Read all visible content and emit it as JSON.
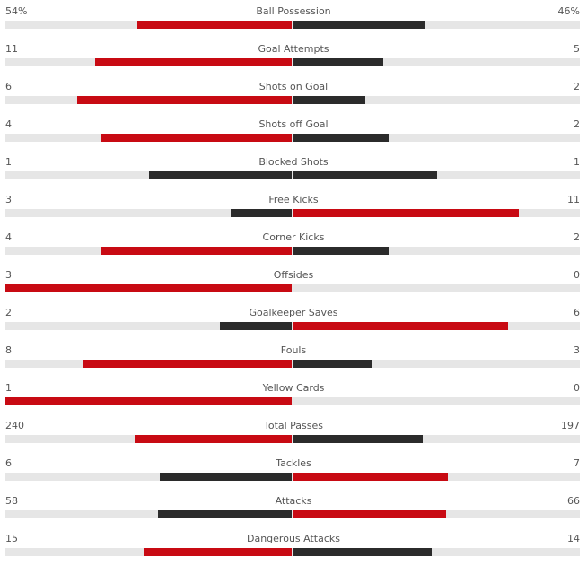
{
  "colors": {
    "highlight": "#c80a13",
    "normal": "#2b2b2b",
    "track": "#e6e6e6"
  },
  "stats": [
    {
      "name": "Ball Possession",
      "home": "54%",
      "away": "46%",
      "home_value": 54,
      "away_value": 46
    },
    {
      "name": "Goal Attempts",
      "home": "11",
      "away": "5",
      "home_value": 11,
      "away_value": 5
    },
    {
      "name": "Shots on Goal",
      "home": "6",
      "away": "2",
      "home_value": 6,
      "away_value": 2
    },
    {
      "name": "Shots off Goal",
      "home": "4",
      "away": "2",
      "home_value": 4,
      "away_value": 2
    },
    {
      "name": "Blocked Shots",
      "home": "1",
      "away": "1",
      "home_value": 1,
      "away_value": 1
    },
    {
      "name": "Free Kicks",
      "home": "3",
      "away": "11",
      "home_value": 3,
      "away_value": 11
    },
    {
      "name": "Corner Kicks",
      "home": "4",
      "away": "2",
      "home_value": 4,
      "away_value": 2
    },
    {
      "name": "Offsides",
      "home": "3",
      "away": "0",
      "home_value": 3,
      "away_value": 0
    },
    {
      "name": "Goalkeeper Saves",
      "home": "2",
      "away": "6",
      "home_value": 2,
      "away_value": 6
    },
    {
      "name": "Fouls",
      "home": "8",
      "away": "3",
      "home_value": 8,
      "away_value": 3
    },
    {
      "name": "Yellow Cards",
      "home": "1",
      "away": "0",
      "home_value": 1,
      "away_value": 0
    },
    {
      "name": "Total Passes",
      "home": "240",
      "away": "197",
      "home_value": 240,
      "away_value": 197
    },
    {
      "name": "Tackles",
      "home": "6",
      "away": "7",
      "home_value": 6,
      "away_value": 7
    },
    {
      "name": "Attacks",
      "home": "58",
      "away": "66",
      "home_value": 58,
      "away_value": 66
    },
    {
      "name": "Dangerous Attacks",
      "home": "15",
      "away": "14",
      "home_value": 15,
      "away_value": 14
    }
  ]
}
